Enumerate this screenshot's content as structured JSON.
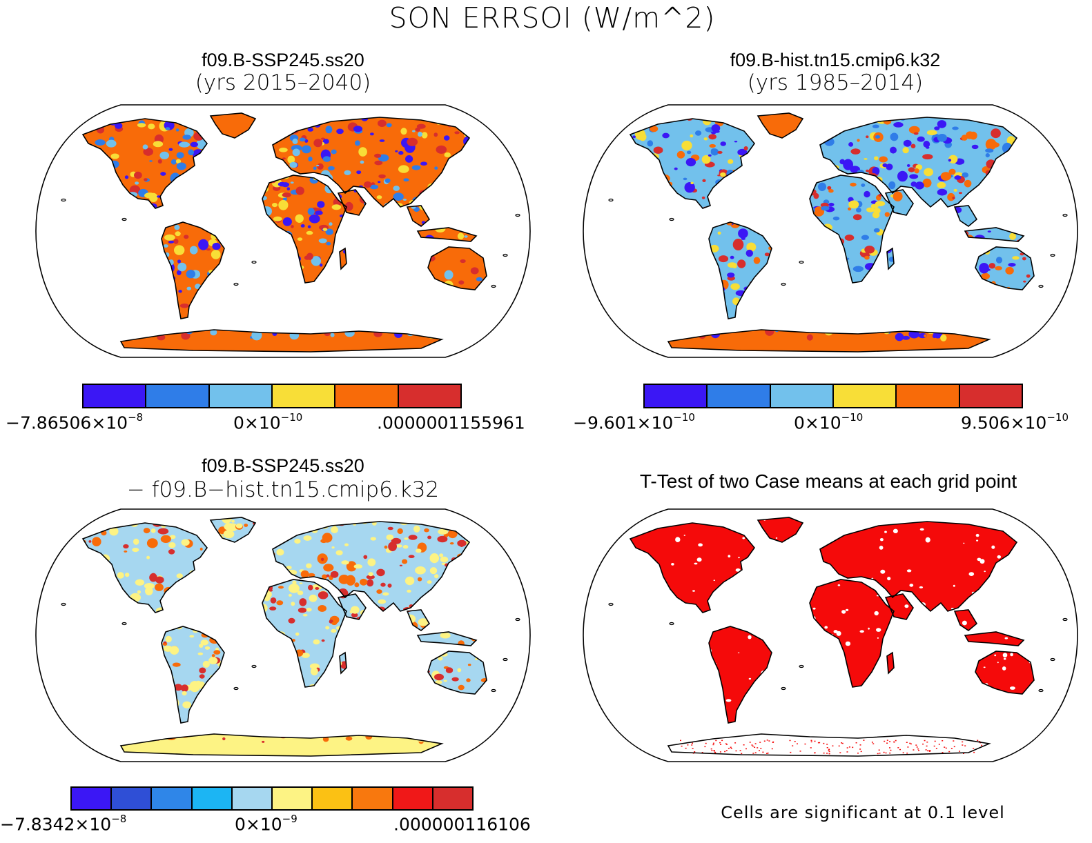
{
  "title": "SON ERRSOI (W/m^2)",
  "panels": [
    {
      "title": "f09.B-SSP245.ss20",
      "subtitle": "(yrs 2015–2040)",
      "colorbar": {
        "colors": [
          "#3b17f5",
          "#2f7de8",
          "#72c1ec",
          "#f8de37",
          "#f86b09",
          "#d72e2d"
        ],
        "ticks": [
          {
            "base": "−7.86506×10",
            "exp": "−8"
          },
          {
            "base": "0×10",
            "exp": "−10"
          },
          {
            "base": ".0000001155961",
            "exp": ""
          }
        ]
      }
    },
    {
      "title": "f09.B-hist.tn15.cmip6.k32",
      "subtitle": "(yrs 1985–2014)",
      "colorbar": {
        "colors": [
          "#3b17f5",
          "#2f7de8",
          "#72c1ec",
          "#f8de37",
          "#f86b09",
          "#d72e2d"
        ],
        "ticks": [
          {
            "base": "−9.601×10",
            "exp": "−10"
          },
          {
            "base": "0×10",
            "exp": "−10"
          },
          {
            "base": "9.506×10",
            "exp": "−10"
          }
        ]
      }
    },
    {
      "title": "f09.B-SSP245.ss20",
      "subtitle": "− f09.B−hist.tn15.cmip6.k32",
      "colorbar": {
        "colors": [
          "#3b17f5",
          "#2f4fd6",
          "#2f86e8",
          "#1cb5f3",
          "#a6d7f0",
          "#fdf384",
          "#fbc114",
          "#f8780e",
          "#f01818",
          "#d72e2d"
        ],
        "ticks": [
          {
            "base": "−7.8342×10",
            "exp": "−8"
          },
          {
            "base": "0×10",
            "exp": "−9"
          },
          {
            "base": ".000000116106",
            "exp": ""
          }
        ]
      }
    },
    {
      "title": "T-Test of two Case means at each grid point",
      "note": "Cells are significant at 0.1 level"
    }
  ],
  "map_colors": {
    "panel1": {
      "land": "#f86b09",
      "mottle": [
        "#d72e2d",
        "#72c1ec",
        "#2f7de8",
        "#f8de37",
        "#3b17f5"
      ],
      "antarctica": "#f86b09"
    },
    "panel2": {
      "land": "#72c1ec",
      "mottle": [
        "#f86b09",
        "#2f7de8",
        "#f8de37",
        "#3b17f5",
        "#d72e2d"
      ],
      "antarctica": "#f86b09"
    },
    "panel3": {
      "land": "#a6d7f0",
      "mottle": [
        "#fdf384",
        "#fdf384",
        "#d72e2d",
        "#f86b09"
      ],
      "antarctica": "#fdf384"
    },
    "panel4": {
      "land": "#f50a0a",
      "mottle": [
        "#ffffff"
      ],
      "antarctica": "#ffffff"
    }
  }
}
